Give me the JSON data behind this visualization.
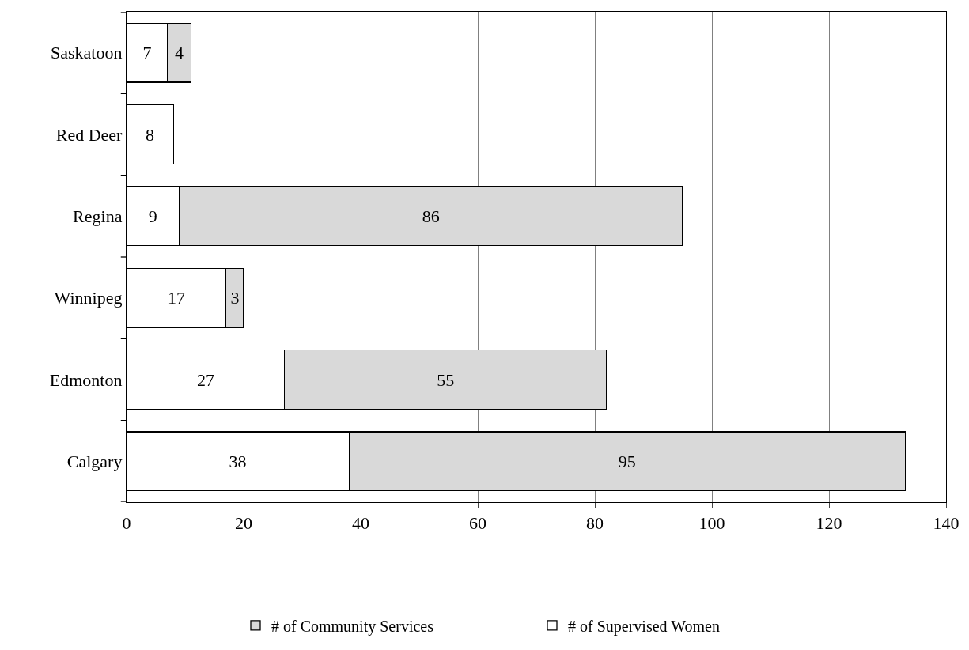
{
  "chart_data": {
    "type": "bar",
    "orientation": "horizontal",
    "stacked": true,
    "categories": [
      "Saskatoon",
      "Red Deer",
      "Regina",
      "Winnipeg",
      "Edmonton",
      "Calgary"
    ],
    "series": [
      {
        "name": "# of Supervised Women",
        "color": "#ffffff",
        "values": [
          7,
          8,
          9,
          17,
          27,
          38
        ]
      },
      {
        "name": "# of Community Services",
        "color": "#d9d9d9",
        "values": [
          4,
          null,
          86,
          3,
          55,
          95
        ]
      }
    ],
    "xlim": [
      0,
      140
    ],
    "xticks": [
      0,
      20,
      40,
      60,
      80,
      100,
      120,
      140
    ],
    "grid": "x",
    "legend": "bottom",
    "data_labels": true
  }
}
